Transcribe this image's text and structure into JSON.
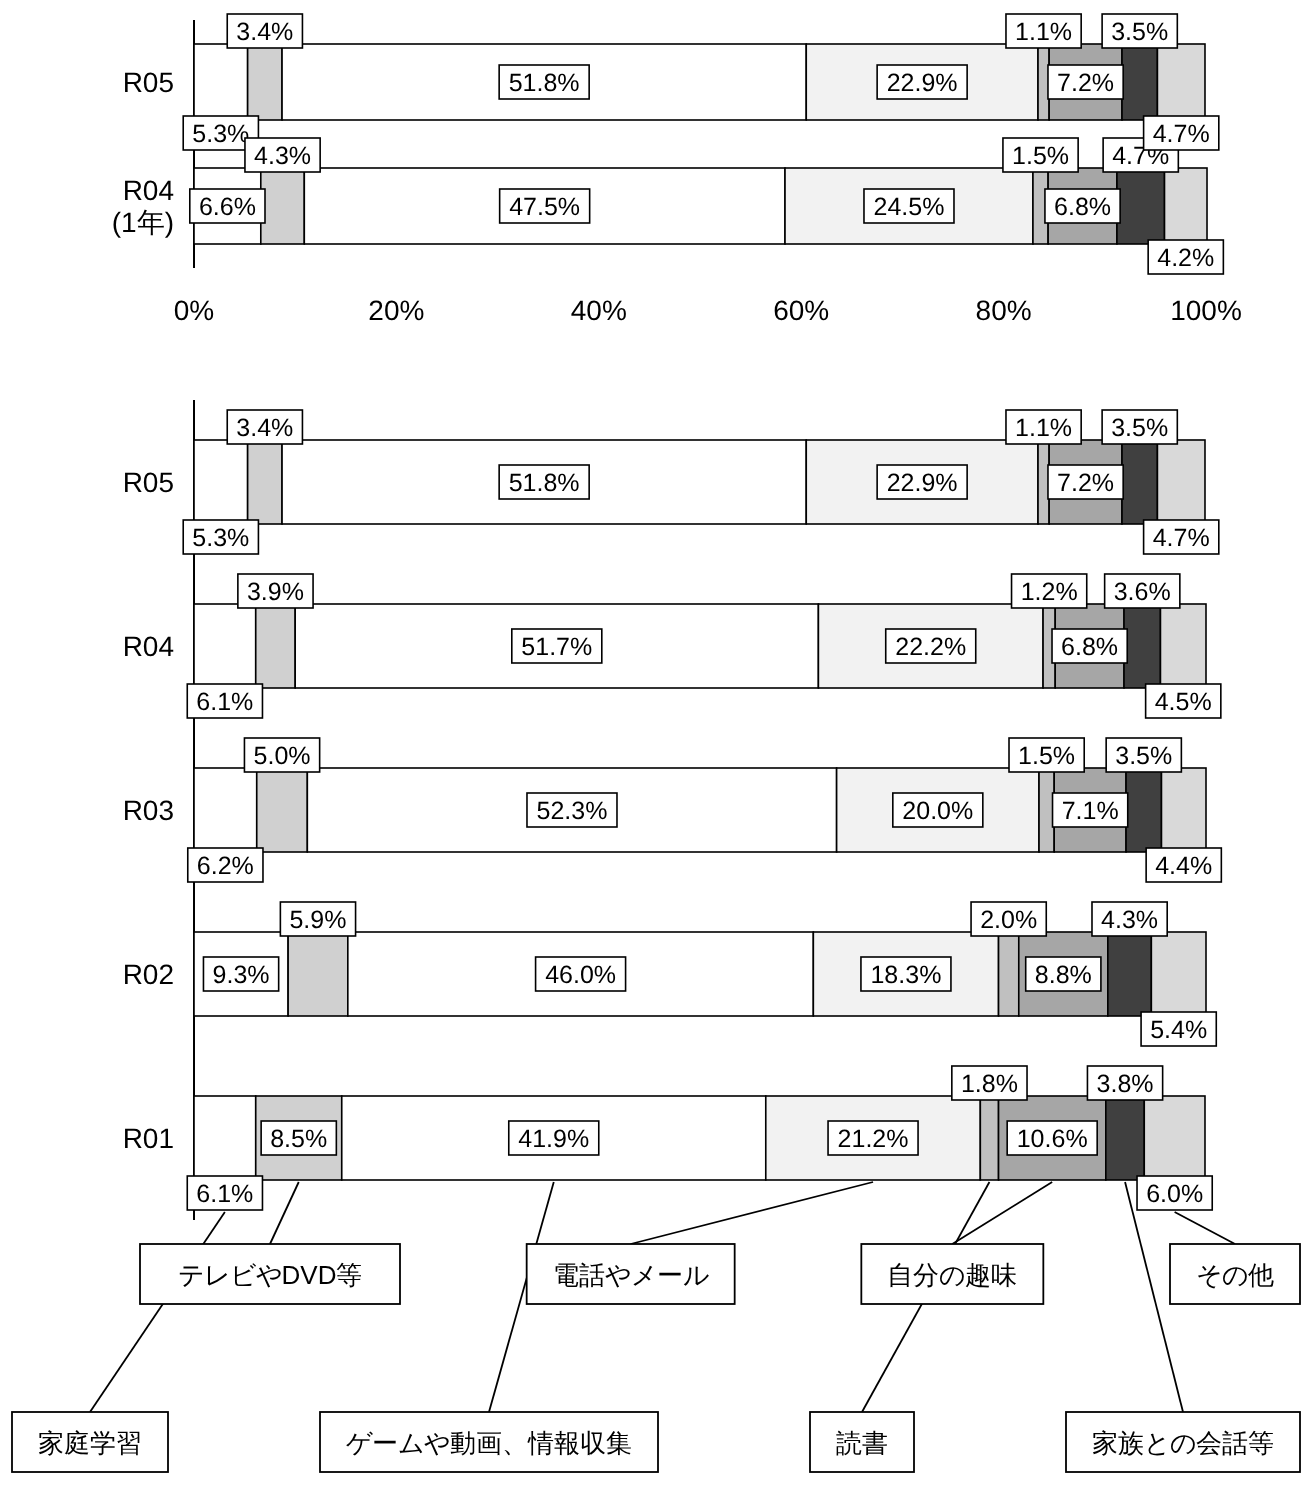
{
  "chart_data": [
    {
      "type": "bar",
      "orientation": "horizontal",
      "stacked": true,
      "categories": [
        "R05",
        "R04\n(1年)"
      ],
      "xlim": [
        0,
        100
      ],
      "xticks": [
        {
          "value": 0,
          "label": "0%"
        },
        {
          "value": 20,
          "label": "20%"
        },
        {
          "value": 40,
          "label": "40%"
        },
        {
          "value": 60,
          "label": "60%"
        },
        {
          "value": 80,
          "label": "80%"
        },
        {
          "value": 100,
          "label": "100%"
        }
      ],
      "grid": false,
      "series": [
        {
          "color": "#ffffff",
          "values": [
            5.3,
            6.6
          ],
          "value_labels": [
            "5.3%",
            "6.6%"
          ]
        },
        {
          "color": "#d0d0d0",
          "values": [
            3.4,
            4.3
          ],
          "value_labels": [
            "3.4%",
            "4.3%"
          ]
        },
        {
          "color": "#ffffff",
          "values": [
            51.8,
            47.5
          ],
          "value_labels": [
            "51.8%",
            "47.5%"
          ]
        },
        {
          "color": "#f2f2f2",
          "values": [
            22.9,
            24.5
          ],
          "value_labels": [
            "22.9%",
            "24.5%"
          ]
        },
        {
          "color": "#c0c0c0",
          "values": [
            1.1,
            1.5
          ],
          "value_labels": [
            "1.1%",
            "1.5%"
          ]
        },
        {
          "color": "#a6a6a6",
          "values": [
            7.2,
            6.8
          ],
          "value_labels": [
            "7.2%",
            "6.8%"
          ]
        },
        {
          "color": "#404040",
          "values": [
            3.5,
            4.7
          ],
          "value_labels": [
            "3.5%",
            "4.7%"
          ]
        },
        {
          "color": "#d9d9d9",
          "values": [
            4.7,
            4.2
          ],
          "value_labels": [
            "4.7%",
            "4.2%"
          ]
        }
      ]
    },
    {
      "type": "bar",
      "orientation": "horizontal",
      "stacked": true,
      "categories": [
        "R05",
        "R04",
        "R03",
        "R02",
        "R01"
      ],
      "xlim": [
        0,
        100
      ],
      "tick_labels": "y",
      "grid": false,
      "legend": "bottom",
      "series": [
        {
          "name": "家庭学習",
          "color": "#ffffff",
          "values": [
            5.3,
            6.1,
            6.2,
            9.3,
            6.1
          ],
          "value_labels": [
            "5.3%",
            "6.1%",
            "6.2%",
            "9.3%",
            "6.1%"
          ]
        },
        {
          "name": "テレビやDVD等",
          "color": "#d0d0d0",
          "values": [
            3.4,
            3.9,
            5.0,
            5.9,
            8.5
          ],
          "value_labels": [
            "3.4%",
            "3.9%",
            "5.0%",
            "5.9%",
            "8.5%"
          ]
        },
        {
          "name": "ゲームや動画、情報収集",
          "color": "#ffffff",
          "values": [
            51.8,
            51.7,
            52.3,
            46.0,
            41.9
          ],
          "value_labels": [
            "51.8%",
            "51.7%",
            "52.3%",
            "46.0%",
            "41.9%"
          ]
        },
        {
          "name": "電話やメール",
          "color": "#f2f2f2",
          "values": [
            22.9,
            22.2,
            20.0,
            18.3,
            21.2
          ],
          "value_labels": [
            "22.9%",
            "22.2%",
            "20.0%",
            "18.3%",
            "21.2%"
          ]
        },
        {
          "name": "読書",
          "color": "#c0c0c0",
          "values": [
            1.1,
            1.2,
            1.5,
            2.0,
            1.8
          ],
          "value_labels": [
            "1.1%",
            "1.2%",
            "1.5%",
            "2.0%",
            "1.8%"
          ]
        },
        {
          "name": "自分の趣味",
          "color": "#a6a6a6",
          "values": [
            7.2,
            6.8,
            7.1,
            8.8,
            10.6
          ],
          "value_labels": [
            "7.2%",
            "6.8%",
            "7.1%",
            "8.8%",
            "10.6%"
          ]
        },
        {
          "name": "家族との会話等",
          "color": "#404040",
          "values": [
            3.5,
            3.6,
            3.5,
            4.3,
            3.8
          ],
          "value_labels": [
            "3.5%",
            "3.6%",
            "3.5%",
            "4.3%",
            "3.8%"
          ]
        },
        {
          "name": "その他",
          "color": "#d9d9d9",
          "values": [
            4.7,
            4.5,
            4.4,
            5.4,
            6.0
          ],
          "value_labels": [
            "4.7%",
            "4.5%",
            "4.4%",
            "5.4%",
            "6.0%"
          ]
        }
      ]
    }
  ]
}
